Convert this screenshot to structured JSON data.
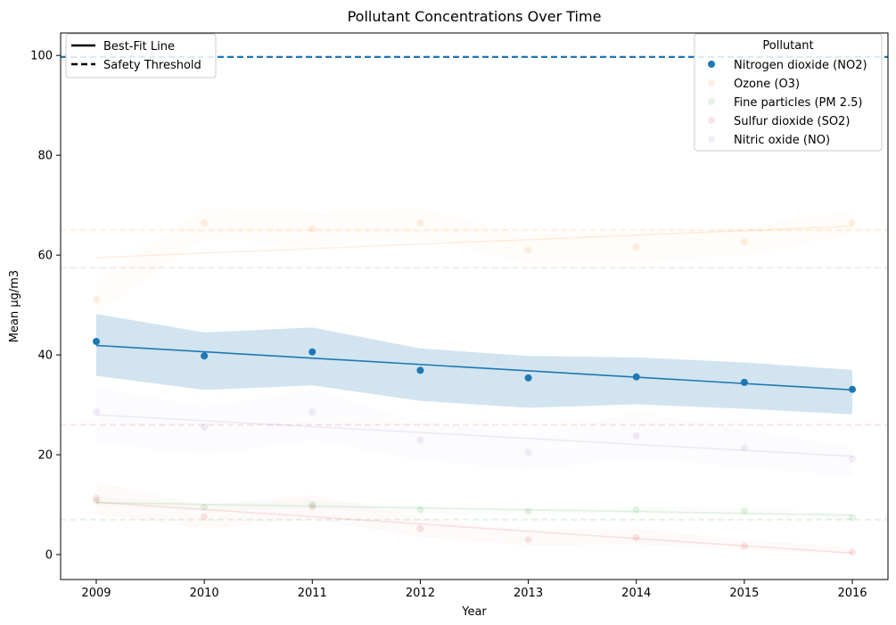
{
  "chart_data": {
    "type": "scatter",
    "title": "Pollutant Concentrations Over Time",
    "xlabel": "Year",
    "ylabel": "Mean µg/m3",
    "x": [
      2009,
      2010,
      2011,
      2012,
      2013,
      2014,
      2015,
      2016
    ],
    "xlim": [
      2008.67,
      2016.33
    ],
    "ylim": [
      -5,
      104.5
    ],
    "yticks": [
      0,
      20,
      40,
      60,
      80,
      100
    ],
    "grid": false,
    "legend_title": "Pollutant",
    "legend_position": "top-right",
    "style_legend_position": "top-left",
    "style_legend": [
      {
        "label": "Best-Fit Line",
        "dash": "solid"
      },
      {
        "label": "Safety Threshold",
        "dash": "dashed"
      }
    ],
    "series": [
      {
        "name": "Nitrogen dioxide (NO2)",
        "color": "#1f77b4",
        "opacity": 1.0,
        "values": [
          42.7,
          39.8,
          40.6,
          36.9,
          35.4,
          35.6,
          34.5,
          33.1
        ],
        "fit": [
          41.9,
          33.0
        ],
        "band_upper": [
          48.2,
          44.5,
          45.5,
          41.3,
          39.8,
          39.5,
          38.5,
          37.0
        ],
        "band_lower": [
          35.8,
          33.0,
          33.9,
          30.8,
          29.4,
          30.1,
          29.2,
          28.1
        ],
        "threshold": 99.7
      },
      {
        "name": "Ozone (O3)",
        "color": "#ff7f0e",
        "opacity": 0.12,
        "values": [
          51.1,
          66.4,
          65.2,
          66.5,
          61.0,
          61.6,
          62.6,
          66.5
        ],
        "fit": [
          59.5,
          65.8
        ],
        "band_upper": [
          54.6,
          69.2,
          68.5,
          69.2,
          64.0,
          64.5,
          65.5,
          68.8
        ],
        "band_lower": [
          48.5,
          63.5,
          61.8,
          63.5,
          58.5,
          58.8,
          60.0,
          64.5
        ],
        "threshold": 65
      },
      {
        "name": "Fine particles (PM 2.5)",
        "color": "#2ca02c",
        "opacity": 0.12,
        "values": [
          10.7,
          9.5,
          10.0,
          9.0,
          8.7,
          9.0,
          8.7,
          7.4
        ],
        "fit": [
          10.4,
          7.9
        ],
        "band_upper": [
          11.5,
          10.3,
          10.8,
          9.8,
          9.4,
          9.6,
          9.3,
          8.2
        ],
        "band_lower": [
          9.8,
          8.7,
          9.2,
          8.2,
          8.0,
          8.3,
          8.0,
          6.8
        ],
        "threshold": 7
      },
      {
        "name": "Sulfur dioxide (SO2)",
        "color": "#d62728",
        "opacity": 0.12,
        "values": [
          11.3,
          7.6,
          9.6,
          5.2,
          3.0,
          3.4,
          1.7,
          0.5
        ],
        "fit": [
          10.5,
          0.3
        ],
        "band_upper": [
          14.5,
          10.0,
          12.0,
          7.5,
          4.8,
          5.2,
          3.0,
          1.5
        ],
        "band_lower": [
          8.0,
          5.2,
          7.0,
          3.5,
          1.8,
          2.0,
          0.8,
          0.0
        ],
        "threshold": 26
      },
      {
        "name": "Nitric oxide (NO)",
        "color": "#9467bd",
        "opacity": 0.12,
        "values": [
          28.6,
          25.6,
          28.6,
          23.0,
          20.5,
          23.8,
          21.4,
          19.2
        ],
        "fit": [
          28.0,
          19.7
        ],
        "band_upper": [
          33.5,
          29.5,
          33.0,
          26.5,
          24.0,
          28.5,
          25.0,
          21.5
        ],
        "band_lower": [
          22.5,
          20.0,
          23.0,
          19.0,
          17.0,
          19.5,
          17.5,
          15.8
        ],
        "threshold": 57.5
      }
    ]
  }
}
